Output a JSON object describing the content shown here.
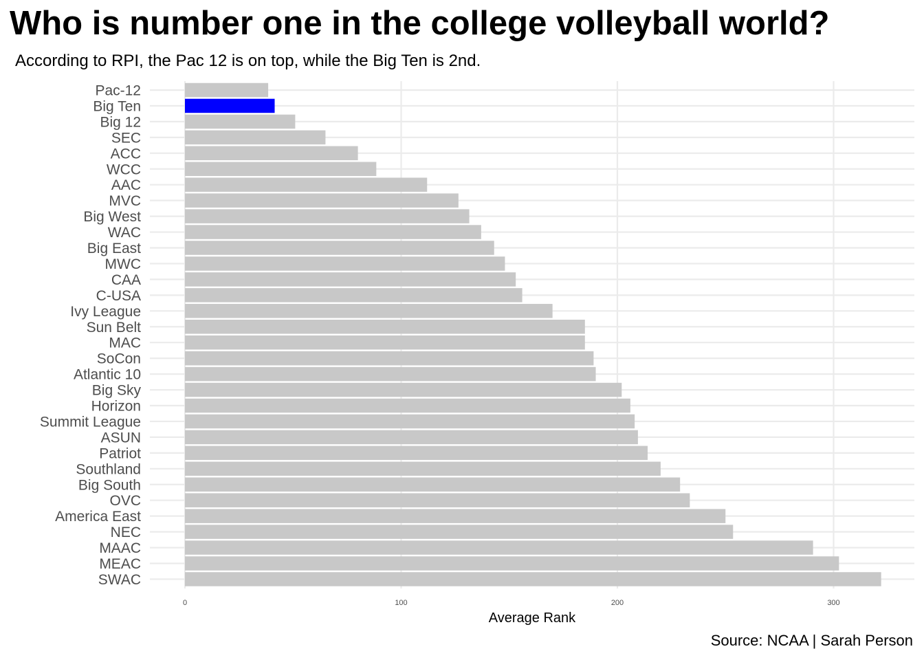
{
  "chart_data": {
    "type": "bar",
    "orientation": "horizontal",
    "title": "Who is number one in the college volleyball world?",
    "subtitle": "According to RPI, the Pac 12 is on top, while the Big Ten is 2nd.",
    "caption": "Source: NCAA | Sarah Person",
    "xlabel": "Average Rank",
    "ylabel": "",
    "xlim": [
      0,
      320
    ],
    "x_ticks": [
      "0",
      "100",
      "200",
      "300"
    ],
    "x_tick_values": [
      0,
      100,
      200,
      300
    ],
    "grid": true,
    "legend": "none",
    "colors": {
      "default": "#c8c8c8",
      "highlight": "#0000ff",
      "grid": "#ebebeb"
    },
    "categories": [
      "Pac-12",
      "Big Ten",
      "Big 12",
      "SEC",
      "ACC",
      "WCC",
      "AAC",
      "MVC",
      "Big West",
      "WAC",
      "Big East",
      "MWC",
      "CAA",
      "C-USA",
      "Ivy League",
      "Sun Belt",
      "MAC",
      "SoCon",
      "Atlantic 10",
      "Big Sky",
      "Horizon",
      "Summit League",
      "ASUN",
      "Patriot",
      "Southland",
      "Big South",
      "OVC",
      "America East",
      "NEC",
      "MAAC",
      "MEAC",
      "SWAC"
    ],
    "values": [
      38.5,
      41.5,
      51,
      65,
      80,
      88.5,
      112,
      126.5,
      131.5,
      137,
      143,
      148,
      153,
      156,
      170,
      185,
      185,
      189,
      190,
      202,
      206,
      208,
      209.5,
      214,
      220,
      229,
      233.5,
      250,
      253.5,
      290.5,
      302.5,
      322
    ],
    "highlight": [
      "Big Ten"
    ]
  }
}
